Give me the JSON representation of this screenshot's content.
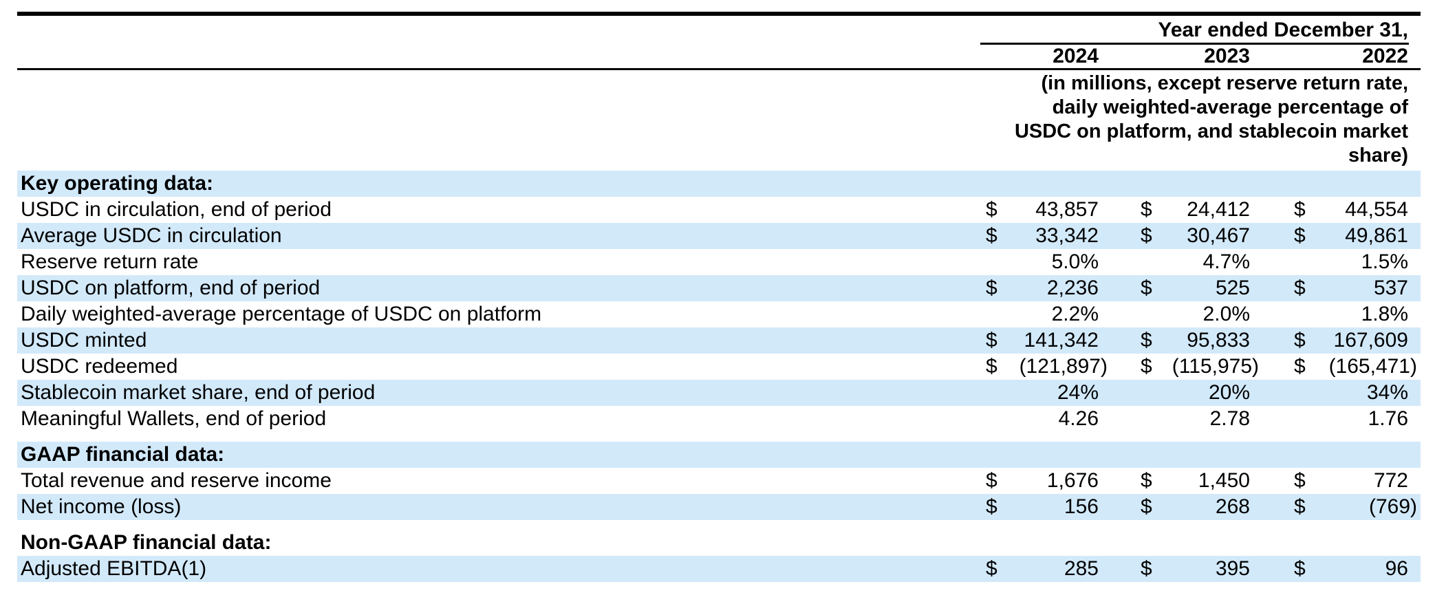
{
  "table": {
    "header": {
      "period_title": "Year ended December 31,",
      "years": [
        "2024",
        "2023",
        "2022"
      ],
      "units_note": "(in millions, except reserve return rate,\ndaily weighted-average percentage of\nUSDC on platform, and stablecoin market\nshare)"
    },
    "currency_symbol": "$",
    "colors": {
      "row_highlight": "#d2e9fa",
      "rule": "#000000",
      "text": "#000000",
      "background": "#ffffff"
    },
    "rows": [
      {
        "type": "section",
        "label": "Key operating data:",
        "shaded": true
      },
      {
        "type": "data",
        "label": "USDC in circulation, end of period",
        "currency": true,
        "values": [
          "43,857",
          "24,412",
          "44,554"
        ],
        "shaded": false
      },
      {
        "type": "data",
        "label": "Average USDC in circulation",
        "currency": true,
        "values": [
          "33,342",
          "30,467",
          "49,861"
        ],
        "shaded": true
      },
      {
        "type": "data",
        "label": "Reserve return rate",
        "currency": false,
        "values": [
          "5.0%",
          "4.7%",
          "1.5%"
        ],
        "shaded": false
      },
      {
        "type": "data",
        "label": "USDC on platform, end of period",
        "currency": true,
        "values": [
          "2,236",
          "525",
          "537"
        ],
        "shaded": true
      },
      {
        "type": "data",
        "label": "Daily weighted-average percentage of USDC on platform",
        "currency": false,
        "values": [
          "2.2%",
          "2.0%",
          "1.8%"
        ],
        "shaded": false
      },
      {
        "type": "data",
        "label": "USDC minted",
        "currency": true,
        "values": [
          "141,342",
          "95,833",
          "167,609"
        ],
        "shaded": true
      },
      {
        "type": "data",
        "label": "USDC redeemed",
        "currency": true,
        "values": [
          "(121,897)",
          "(115,975)",
          "(165,471)"
        ],
        "shaded": false
      },
      {
        "type": "data",
        "label": "Stablecoin market share, end of period",
        "currency": false,
        "values": [
          "24%",
          "20%",
          "34%"
        ],
        "shaded": true
      },
      {
        "type": "data",
        "label": "Meaningful Wallets, end of period",
        "currency": false,
        "values": [
          "4.26",
          "2.78",
          "1.76"
        ],
        "shaded": false
      },
      {
        "type": "spacer"
      },
      {
        "type": "section",
        "label": "GAAP financial data:",
        "shaded": true
      },
      {
        "type": "data",
        "label": "Total revenue and reserve income",
        "currency": true,
        "values": [
          "1,676",
          "1,450",
          "772"
        ],
        "shaded": false
      },
      {
        "type": "data",
        "label": "Net income (loss)",
        "currency": true,
        "values": [
          "156",
          "268",
          "(769)"
        ],
        "shaded": true
      },
      {
        "type": "spacer"
      },
      {
        "type": "section",
        "label": "Non-GAAP financial data:",
        "shaded": false
      },
      {
        "type": "data",
        "label": "Adjusted EBITDA(1)",
        "currency": true,
        "values": [
          "285",
          "395",
          "96"
        ],
        "shaded": true
      }
    ]
  }
}
